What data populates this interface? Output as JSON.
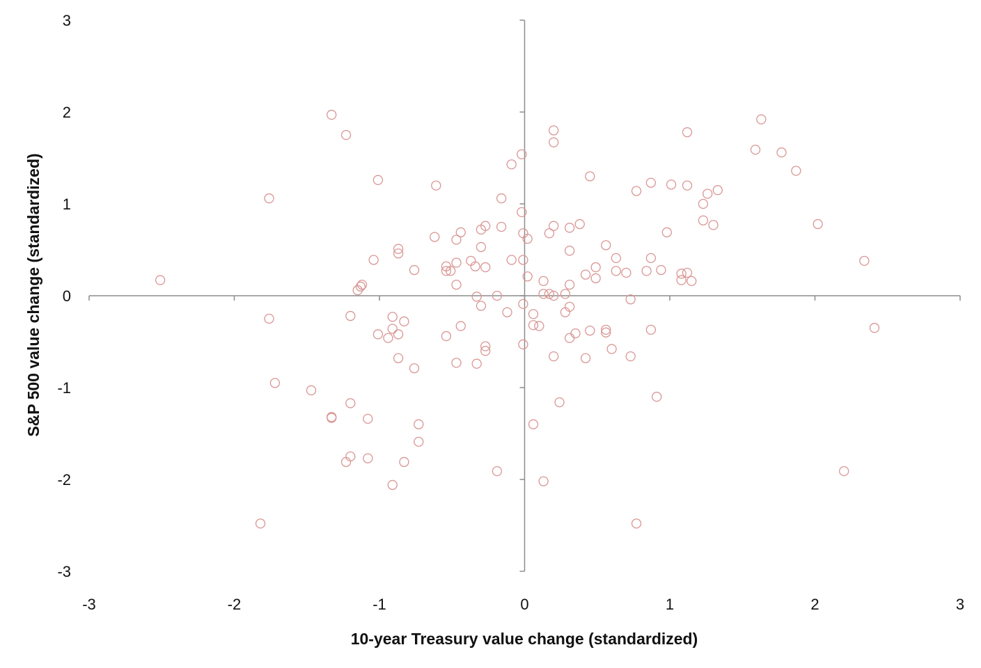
{
  "chart_data": {
    "type": "scatter",
    "title": "",
    "xlabel": "10-year Treasury value change (standardized)",
    "ylabel": "S&P 500 value change (standardized)",
    "xlim": [
      -3,
      3
    ],
    "ylim": [
      -3,
      3
    ],
    "xticks": [
      -3,
      -2,
      -1,
      0,
      1,
      2,
      3
    ],
    "yticks": [
      -3,
      -2,
      -1,
      0,
      1,
      2,
      3
    ],
    "xtick_labels": [
      "-3",
      "-2",
      "-1",
      "0",
      "1",
      "2",
      "3"
    ],
    "ytick_labels": [
      "-3",
      "-2",
      "-1",
      "0",
      "1",
      "2",
      "3"
    ],
    "grid": false,
    "legend": "none",
    "marker": "hollow-circle",
    "marker_color": "#d99694",
    "axis_color": "#8c8c8c",
    "series": [
      {
        "points": [
          [
            -2.51,
            0.17
          ],
          [
            -1.82,
            -2.48
          ],
          [
            -1.76,
            1.06
          ],
          [
            -1.76,
            -0.25
          ],
          [
            -1.72,
            -0.95
          ],
          [
            -1.47,
            -1.03
          ],
          [
            -1.33,
            1.97
          ],
          [
            -1.33,
            -1.32
          ],
          [
            -1.33,
            -1.33
          ],
          [
            -1.23,
            1.75
          ],
          [
            -1.23,
            -1.81
          ],
          [
            -1.2,
            -0.22
          ],
          [
            -1.2,
            -1.17
          ],
          [
            -1.2,
            -1.75
          ],
          [
            -1.15,
            0.06
          ],
          [
            -1.13,
            0.1
          ],
          [
            -1.12,
            0.12
          ],
          [
            -1.08,
            -1.34
          ],
          [
            -1.08,
            -1.77
          ],
          [
            -1.04,
            0.39
          ],
          [
            -1.01,
            1.26
          ],
          [
            -1.01,
            -0.42
          ],
          [
            -0.94,
            -0.46
          ],
          [
            -0.91,
            -0.23
          ],
          [
            -0.91,
            -0.36
          ],
          [
            -0.91,
            -2.06
          ],
          [
            -0.87,
            0.51
          ],
          [
            -0.87,
            0.46
          ],
          [
            -0.87,
            -0.42
          ],
          [
            -0.87,
            -0.68
          ],
          [
            -0.83,
            -0.28
          ],
          [
            -0.83,
            -1.81
          ],
          [
            -0.76,
            0.28
          ],
          [
            -0.76,
            -0.79
          ],
          [
            -0.73,
            -1.4
          ],
          [
            -0.73,
            -1.59
          ],
          [
            -0.61,
            1.2
          ],
          [
            -0.62,
            0.64
          ],
          [
            -0.54,
            0.32
          ],
          [
            -0.54,
            0.27
          ],
          [
            -0.54,
            -0.44
          ],
          [
            -0.51,
            0.27
          ],
          [
            -0.47,
            0.61
          ],
          [
            -0.47,
            0.36
          ],
          [
            -0.47,
            0.12
          ],
          [
            -0.47,
            -0.73
          ],
          [
            -0.44,
            0.69
          ],
          [
            -0.44,
            -0.33
          ],
          [
            -0.37,
            0.38
          ],
          [
            -0.34,
            0.32
          ],
          [
            -0.33,
            -0.01
          ],
          [
            -0.33,
            -0.74
          ],
          [
            -0.3,
            0.72
          ],
          [
            -0.3,
            0.53
          ],
          [
            -0.3,
            -0.11
          ],
          [
            -0.27,
            0.76
          ],
          [
            -0.27,
            0.31
          ],
          [
            -0.27,
            -0.55
          ],
          [
            -0.27,
            -0.6
          ],
          [
            -0.19,
            0.0
          ],
          [
            -0.19,
            -1.91
          ],
          [
            -0.16,
            1.06
          ],
          [
            -0.16,
            0.75
          ],
          [
            -0.12,
            -0.18
          ],
          [
            -0.09,
            1.43
          ],
          [
            -0.09,
            0.39
          ],
          [
            -0.02,
            1.54
          ],
          [
            -0.02,
            0.91
          ],
          [
            -0.01,
            0.68
          ],
          [
            -0.01,
            0.39
          ],
          [
            -0.01,
            -0.09
          ],
          [
            -0.01,
            -0.53
          ],
          [
            0.02,
            0.62
          ],
          [
            0.02,
            0.21
          ],
          [
            0.06,
            -0.2
          ],
          [
            0.06,
            -0.32
          ],
          [
            0.06,
            -1.4
          ],
          [
            0.1,
            -0.33
          ],
          [
            0.13,
            0.16
          ],
          [
            0.13,
            0.02
          ],
          [
            0.13,
            -2.02
          ],
          [
            0.17,
            0.68
          ],
          [
            0.17,
            0.02
          ],
          [
            0.2,
            1.8
          ],
          [
            0.2,
            1.67
          ],
          [
            0.2,
            0.76
          ],
          [
            0.2,
            0.0
          ],
          [
            0.2,
            -0.66
          ],
          [
            0.24,
            -1.16
          ],
          [
            0.28,
            0.02
          ],
          [
            0.28,
            -0.18
          ],
          [
            0.31,
            0.74
          ],
          [
            0.31,
            0.49
          ],
          [
            0.31,
            0.12
          ],
          [
            0.31,
            -0.12
          ],
          [
            0.31,
            -0.46
          ],
          [
            0.35,
            -0.41
          ],
          [
            0.38,
            0.78
          ],
          [
            0.42,
            0.23
          ],
          [
            0.42,
            -0.68
          ],
          [
            0.45,
            1.3
          ],
          [
            0.45,
            -0.38
          ],
          [
            0.49,
            0.31
          ],
          [
            0.49,
            0.19
          ],
          [
            0.56,
            0.55
          ],
          [
            0.56,
            -0.37
          ],
          [
            0.56,
            -0.4
          ],
          [
            0.6,
            -0.58
          ],
          [
            0.63,
            0.41
          ],
          [
            0.63,
            0.27
          ],
          [
            0.7,
            0.25
          ],
          [
            0.73,
            -0.04
          ],
          [
            0.73,
            -0.66
          ],
          [
            0.77,
            1.14
          ],
          [
            0.77,
            -2.48
          ],
          [
            0.84,
            0.27
          ],
          [
            0.87,
            1.23
          ],
          [
            0.87,
            0.41
          ],
          [
            0.87,
            -0.37
          ],
          [
            0.91,
            -1.1
          ],
          [
            0.94,
            0.28
          ],
          [
            0.98,
            0.69
          ],
          [
            1.01,
            1.21
          ],
          [
            1.08,
            0.24
          ],
          [
            1.08,
            0.17
          ],
          [
            1.12,
            1.78
          ],
          [
            1.12,
            1.2
          ],
          [
            1.12,
            0.25
          ],
          [
            1.15,
            0.16
          ],
          [
            1.23,
            1.0
          ],
          [
            1.23,
            0.82
          ],
          [
            1.26,
            1.11
          ],
          [
            1.3,
            0.77
          ],
          [
            1.33,
            1.15
          ],
          [
            1.59,
            1.59
          ],
          [
            1.63,
            1.92
          ],
          [
            1.77,
            1.56
          ],
          [
            1.87,
            1.36
          ],
          [
            2.02,
            0.78
          ],
          [
            2.2,
            -1.91
          ],
          [
            2.34,
            0.38
          ],
          [
            2.41,
            -0.35
          ]
        ]
      }
    ]
  }
}
